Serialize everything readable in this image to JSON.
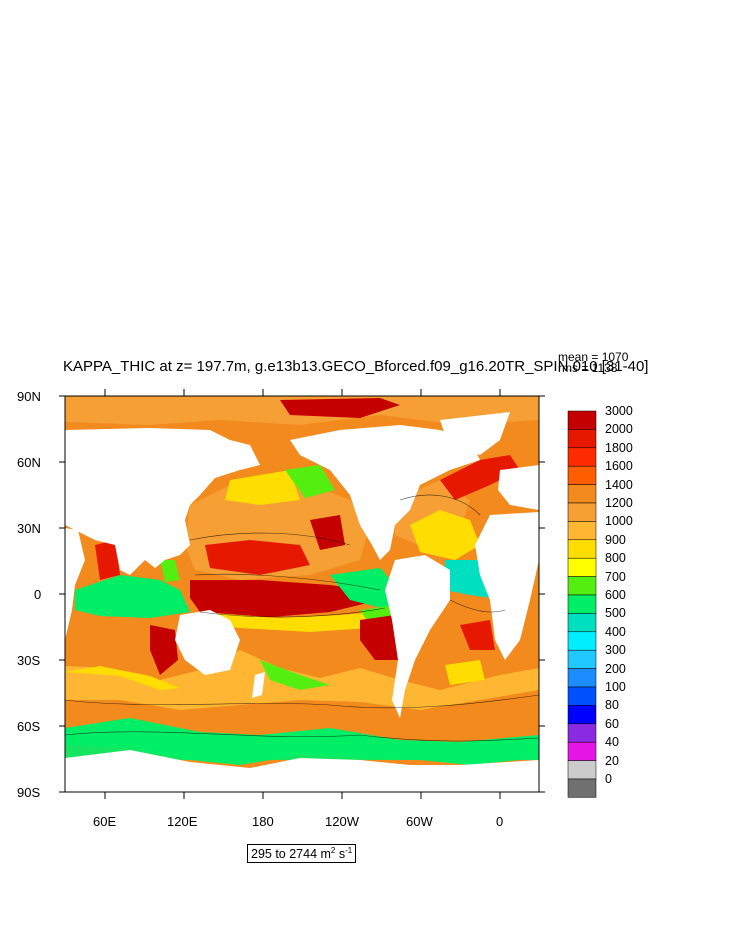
{
  "title": "KAPPA_THIC at z= 197.7m, g.e13b13.GECO_Bforced.f09_g16.20TR_SPIN.010 [31-40]",
  "stats": {
    "mean": "mean = 1070",
    "rms": "rms = 1138"
  },
  "axes": {
    "lat_labels": [
      "90N",
      "60N",
      "30N",
      "0",
      "30S",
      "60S",
      "90S"
    ],
    "lon_labels": [
      "60E",
      "120E",
      "180",
      "120W",
      "60W",
      "0"
    ]
  },
  "colorbar": {
    "levels": [
      "3000",
      "2000",
      "1800",
      "1600",
      "1400",
      "1200",
      "1000",
      "900",
      "800",
      "700",
      "600",
      "500",
      "400",
      "300",
      "200",
      "100",
      "80",
      "60",
      "40",
      "20",
      "0"
    ],
    "colors": [
      "#c40000",
      "#e61900",
      "#ff2b00",
      "#ff5e00",
      "#f28a1e",
      "#f59f35",
      "#ffb733",
      "#ffdd00",
      "#ffff00",
      "#55ee11",
      "#00ee66",
      "#00e0c0",
      "#00eeff",
      "#20c8ff",
      "#1d8cff",
      "#0050ff",
      "#0000ff",
      "#8a2be2",
      "#e617e6",
      "#cccccc",
      "#707070"
    ]
  },
  "range": {
    "text": "295 to 2744 m",
    "unit_sup": "2",
    "suffix": " s",
    "suffix_sup": "-1"
  },
  "legend_colors": {
    "land": "#ffffff",
    "ocean_base": "#f28a1e"
  }
}
